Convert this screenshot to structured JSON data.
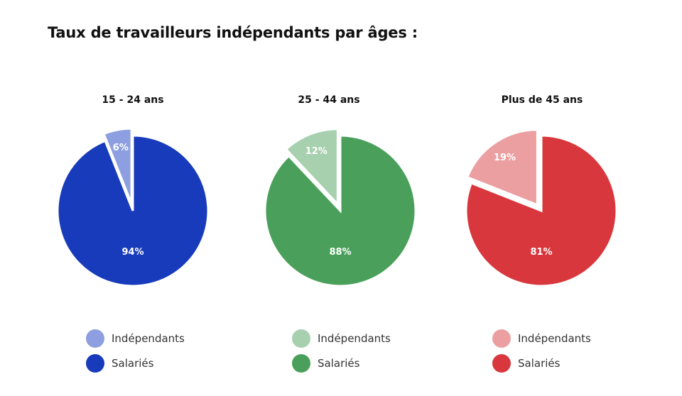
{
  "title": "Taux de travailleurs indépendants par âges :",
  "legend_labels": [
    "Indépendants",
    "Salariés"
  ],
  "chart_data": [
    {
      "type": "pie",
      "title": "15 - 24 ans",
      "labels": [
        "Indépendants",
        "Salariés"
      ],
      "values": [
        6,
        94
      ],
      "value_labels": [
        "6%",
        "94%"
      ],
      "colors": [
        "#8d9fe0",
        "#173bba"
      ]
    },
    {
      "type": "pie",
      "title": "25 - 44 ans",
      "labels": [
        "Indépendants",
        "Salariés"
      ],
      "values": [
        12,
        88
      ],
      "value_labels": [
        "12%",
        "88%"
      ],
      "colors": [
        "#a6d0ae",
        "#4aa05a"
      ]
    },
    {
      "type": "pie",
      "title": "Plus de 45 ans",
      "labels": [
        "Indépendants",
        "Salariés"
      ],
      "values": [
        19,
        81
      ],
      "value_labels": [
        "19%",
        "81%"
      ],
      "colors": [
        "#eb9fa1",
        "#d8383d"
      ]
    }
  ]
}
